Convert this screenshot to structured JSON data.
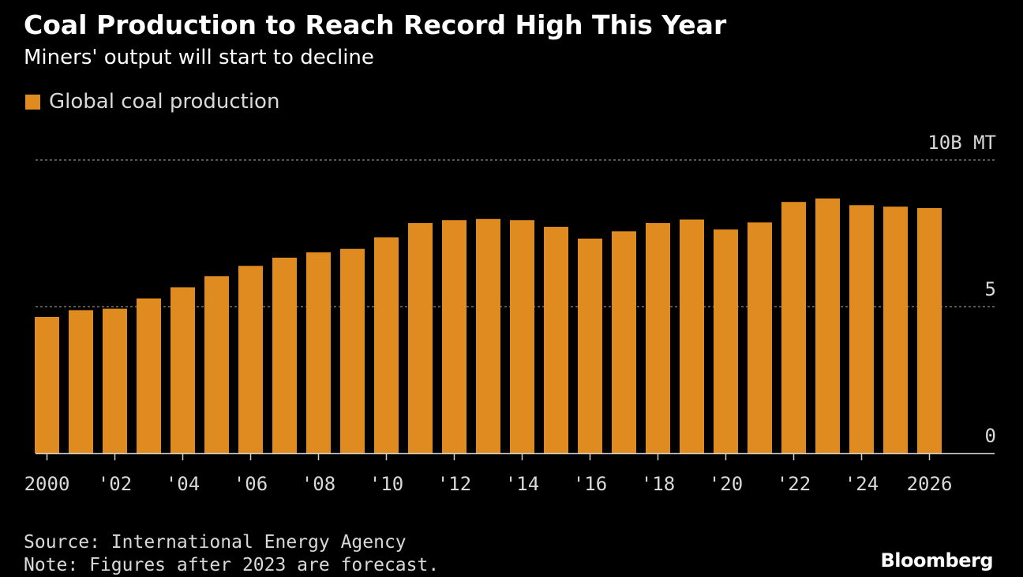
{
  "title": "Coal Production to Reach Record High This Year",
  "subtitle": "Miners' output will start to decline",
  "legend": {
    "label": "Global coal production",
    "color": "#e08b20"
  },
  "colors": {
    "background": "#000000",
    "bar": "#e08b20",
    "grid": "#8c8c8c",
    "axis": "#cfcfcf",
    "text": "#d9d9d9"
  },
  "chart_data": {
    "type": "bar",
    "title": "Coal Production to Reach Record High This Year",
    "subtitle": "Miners' output will start to decline",
    "xlabel": "",
    "ylabel": "",
    "ylim": [
      0,
      10
    ],
    "y_ticks": [
      {
        "value": 0,
        "label": "0"
      },
      {
        "value": 5,
        "label": "5"
      },
      {
        "value": 10,
        "label": "10B MT"
      }
    ],
    "grid": true,
    "categories": [
      "2000",
      "2001",
      "2002",
      "2003",
      "2004",
      "2005",
      "2006",
      "2007",
      "2008",
      "2009",
      "2010",
      "2011",
      "2012",
      "2013",
      "2014",
      "2015",
      "2016",
      "2017",
      "2018",
      "2019",
      "2020",
      "2021",
      "2022",
      "2023",
      "2024",
      "2025",
      "2026"
    ],
    "x_tick_labels": [
      "2000",
      "",
      "'02",
      "",
      "'04",
      "",
      "'06",
      "",
      "'08",
      "",
      "'10",
      "",
      "'12",
      "",
      "'14",
      "",
      "'16",
      "",
      "'18",
      "",
      "'20",
      "",
      "'22",
      "",
      "'24",
      "",
      "2026"
    ],
    "series": [
      {
        "name": "Global coal production",
        "color": "#e08b20",
        "values": [
          4.65,
          4.88,
          4.93,
          5.28,
          5.66,
          6.04,
          6.39,
          6.67,
          6.85,
          6.97,
          7.36,
          7.85,
          7.95,
          7.99,
          7.95,
          7.72,
          7.32,
          7.57,
          7.85,
          7.97,
          7.63,
          7.87,
          8.57,
          8.69,
          8.46,
          8.41,
          8.36
        ]
      }
    ],
    "forecast_after": 2023
  },
  "footer": {
    "source": "Source: International Energy Agency",
    "note": "Note: Figures after 2023 are forecast."
  },
  "brand": "Bloomberg"
}
